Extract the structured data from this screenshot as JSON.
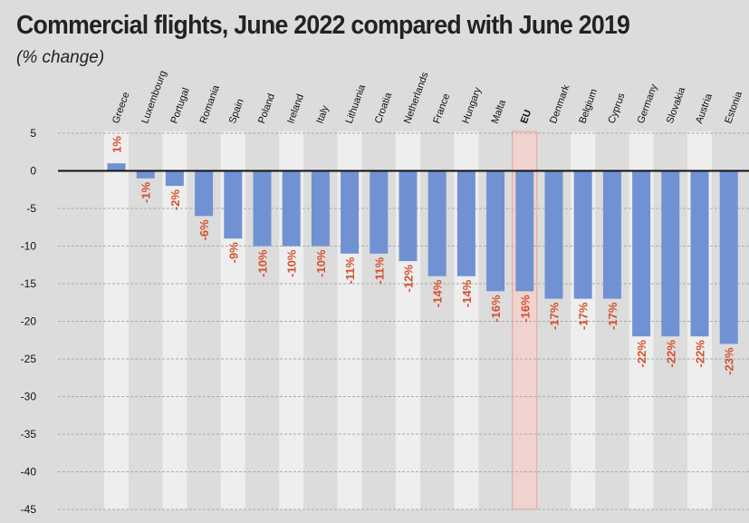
{
  "title": "Commercial flights, June 2022 compared with June 2019",
  "subtitle": "(% change)",
  "colors": {
    "background": "#dcdcdc",
    "bar": "#7192d2",
    "stripe": "#eeeeee",
    "highlight_fill": "#f0d3cf",
    "highlight_stroke": "#e3a49b",
    "label": "#d6502b",
    "axis": "#111111",
    "grid": "#ababab"
  },
  "chart_data": {
    "type": "bar",
    "title": "Commercial flights, June 2022 compared with June 2019",
    "subtitle": "(% change)",
    "categories": [
      "Greece",
      "Luxembourg",
      "Portugal",
      "Romania",
      "Spain",
      "Poland",
      "Ireland",
      "Italy",
      "Lithuania",
      "Croatia",
      "Netherlands",
      "France",
      "Hungary",
      "Malta",
      "EU",
      "Denmark",
      "Belgium",
      "Cyprus",
      "Germany",
      "Slovakia",
      "Austria",
      "Estonia"
    ],
    "values": [
      1,
      -1,
      -2,
      -6,
      -9,
      -10,
      -10,
      -10,
      -11,
      -11,
      -12,
      -14,
      -14,
      -16,
      -16,
      -17,
      -17,
      -17,
      -22,
      -22,
      -22,
      -23
    ],
    "data_labels": [
      "1%",
      "-1%",
      "-2%",
      "-6%",
      "-9%",
      "-10%",
      "-10%",
      "-10%",
      "-11%",
      "-11%",
      "-12%",
      "-14%",
      "-14%",
      "-16%",
      "-16%",
      "-17%",
      "-17%",
      "-17%",
      "-22%",
      "-22%",
      "-22%",
      "-23%"
    ],
    "highlight_category": "EU",
    "y_ticks": [
      5,
      0,
      -5,
      -10,
      -15,
      -20,
      -25,
      -30,
      -35,
      -40,
      -45
    ],
    "ylim": [
      -45,
      5
    ],
    "xlabel": "",
    "ylabel": "",
    "grid": true,
    "legend": "none"
  }
}
